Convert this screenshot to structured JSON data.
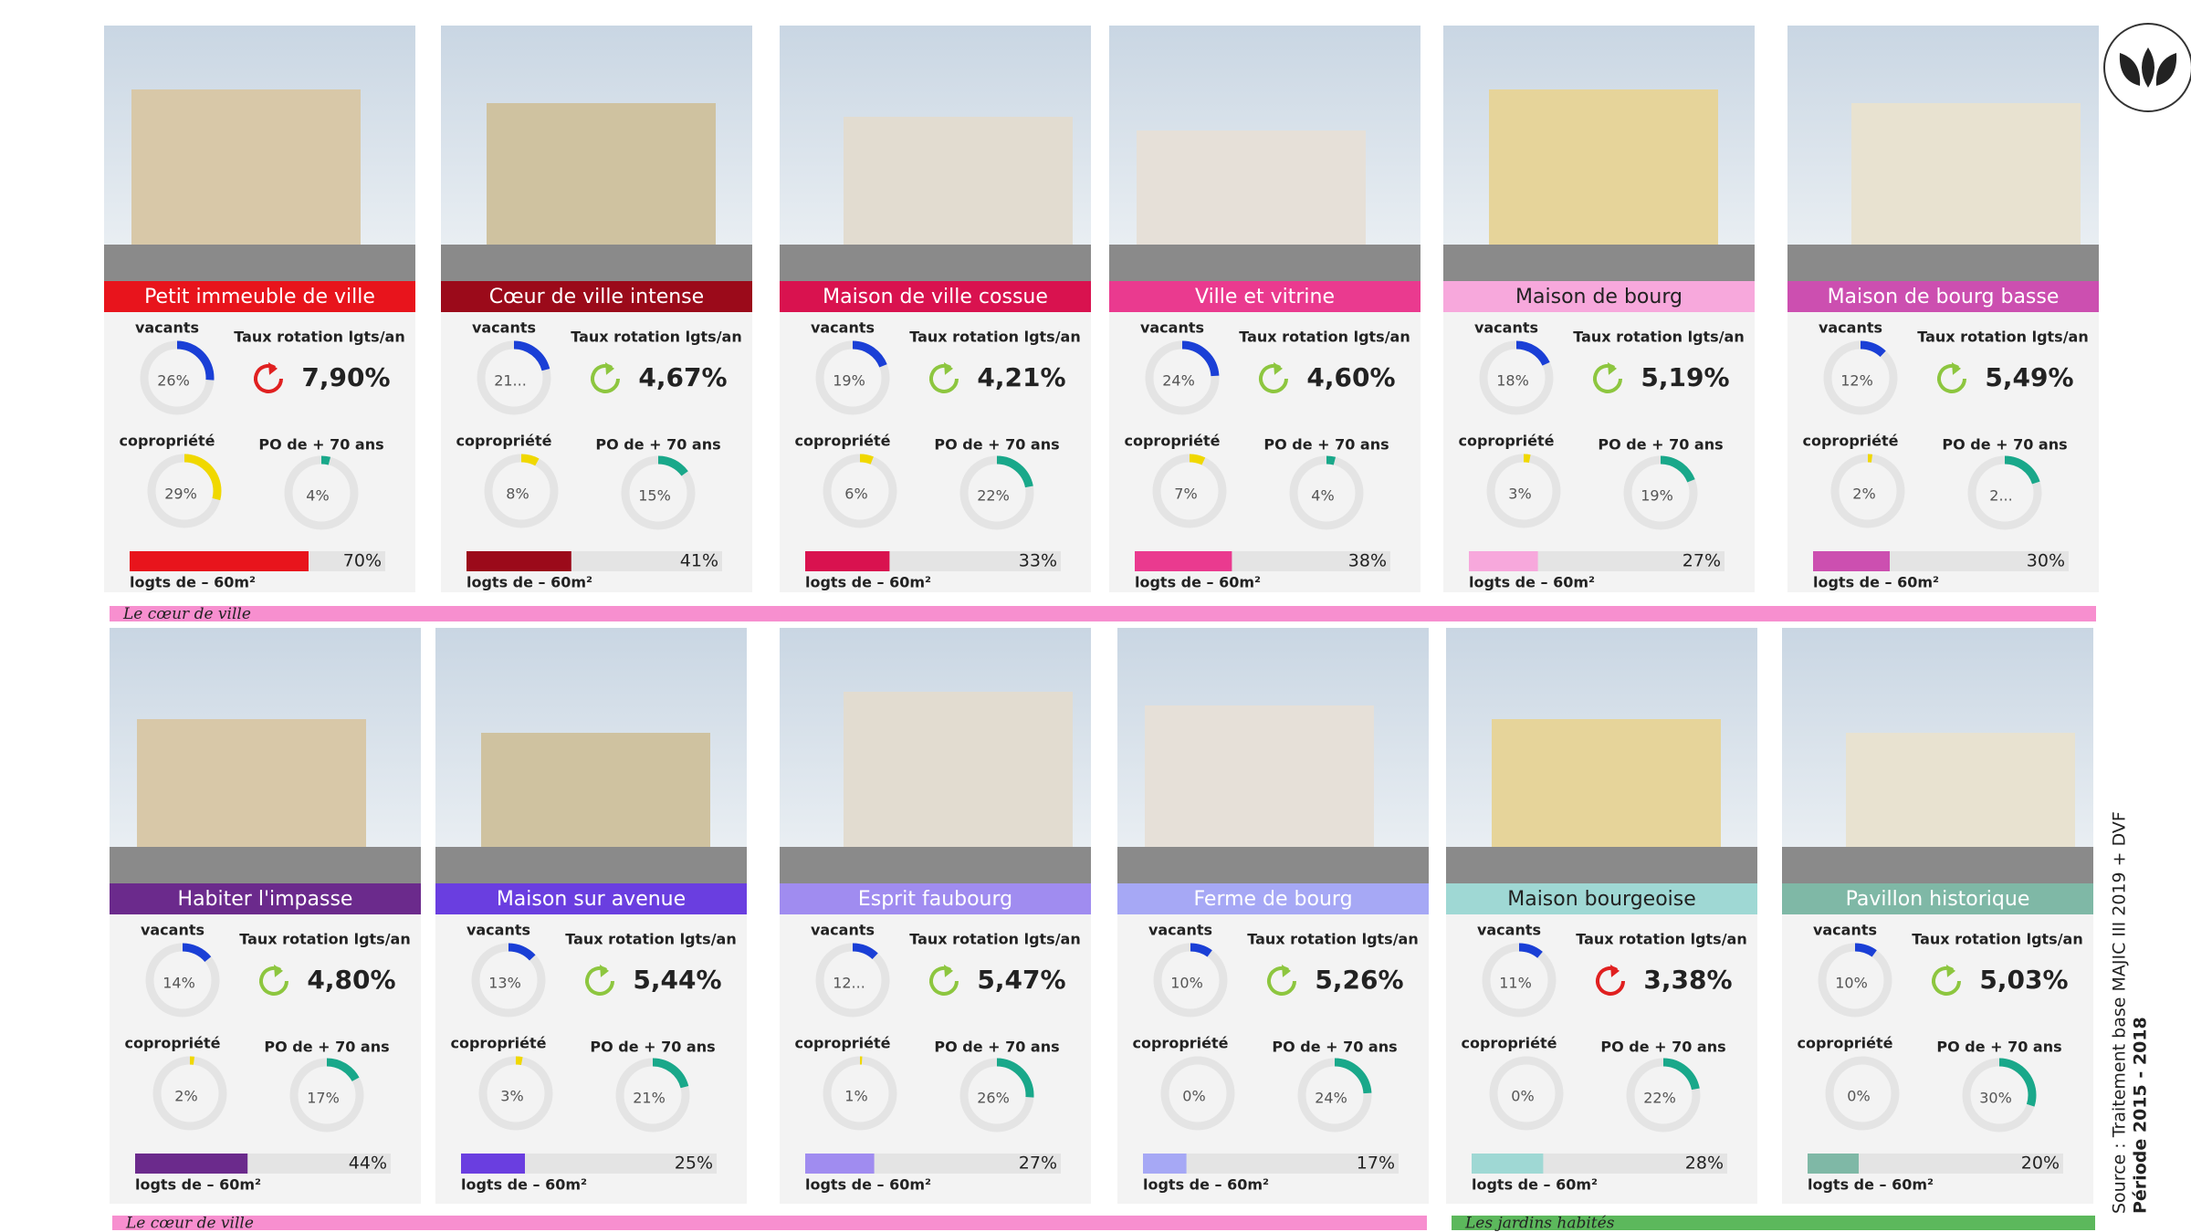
{
  "labels": {
    "vacants": "vacants",
    "rotation": "Taux rotation lgts/an",
    "copropriete": "copropriété",
    "po70": "PO de + 70 ans",
    "logts": "logts de – 60m²"
  },
  "cards": [
    {
      "title": "Petit immeuble de ville",
      "color": "#e8141c",
      "vacants": {
        "value": 26,
        "label": "26%"
      },
      "rotation": {
        "value": 7.9,
        "label": "7,90%"
      },
      "rotation_color": "#e02020",
      "copropriete": {
        "value": 29,
        "label": "29%"
      },
      "po70": {
        "value": 4,
        "label": "4%"
      },
      "logts": {
        "value": 70,
        "label": "70%"
      }
    },
    {
      "title": "Cœur de ville intense",
      "color": "#9b0a1a",
      "vacants": {
        "value": 21,
        "label": "21..."
      },
      "rotation": {
        "value": 4.67,
        "label": "4,67%"
      },
      "rotation_color": "#8dc63f",
      "copropriete": {
        "value": 8,
        "label": "8%"
      },
      "po70": {
        "value": 15,
        "label": "15%"
      },
      "logts": {
        "value": 41,
        "label": "41%"
      }
    },
    {
      "title": "Maison de ville cossue",
      "color": "#d9124f",
      "vacants": {
        "value": 19,
        "label": "19%"
      },
      "rotation": {
        "value": 4.21,
        "label": "4,21%"
      },
      "rotation_color": "#8dc63f",
      "copropriete": {
        "value": 6,
        "label": "6%"
      },
      "po70": {
        "value": 22,
        "label": "22%"
      },
      "logts": {
        "value": 33,
        "label": "33%"
      }
    },
    {
      "title": "Ville et vitrine",
      "color": "#ea3a8f",
      "vacants": {
        "value": 24,
        "label": "24%"
      },
      "rotation": {
        "value": 4.6,
        "label": "4,60%"
      },
      "rotation_color": "#8dc63f",
      "copropriete": {
        "value": 7,
        "label": "7%"
      },
      "po70": {
        "value": 4,
        "label": "4%"
      },
      "logts": {
        "value": 38,
        "label": "38%"
      }
    },
    {
      "title": "Maison de bourg",
      "color": "#f7a8dc",
      "vacants": {
        "value": 18,
        "label": "18%"
      },
      "rotation": {
        "value": 5.19,
        "label": "5,19%"
      },
      "rotation_color": "#8dc63f",
      "copropriete": {
        "value": 3,
        "label": "3%"
      },
      "po70": {
        "value": 19,
        "label": "19%"
      },
      "logts": {
        "value": 27,
        "label": "27%"
      }
    },
    {
      "title": "Maison de bourg basse",
      "color": "#cc4fb0",
      "vacants": {
        "value": 12,
        "label": "12%"
      },
      "rotation": {
        "value": 5.49,
        "label": "5,49%"
      },
      "rotation_color": "#8dc63f",
      "copropriete": {
        "value": 2,
        "label": "2%"
      },
      "po70": {
        "value": 20,
        "label": "2..."
      },
      "logts": {
        "value": 30,
        "label": "30%"
      }
    },
    {
      "title": "Habiter l'impasse",
      "color": "#6b2a8c",
      "vacants": {
        "value": 14,
        "label": "14%"
      },
      "rotation": {
        "value": 4.8,
        "label": "4,80%"
      },
      "rotation_color": "#8dc63f",
      "copropriete": {
        "value": 2,
        "label": "2%"
      },
      "po70": {
        "value": 17,
        "label": "17%"
      },
      "logts": {
        "value": 44,
        "label": "44%"
      }
    },
    {
      "title": "Maison sur avenue",
      "color": "#6a3ee0",
      "vacants": {
        "value": 13,
        "label": "13%"
      },
      "rotation": {
        "value": 5.44,
        "label": "5,44%"
      },
      "rotation_color": "#8dc63f",
      "copropriete": {
        "value": 3,
        "label": "3%"
      },
      "po70": {
        "value": 21,
        "label": "21%"
      },
      "logts": {
        "value": 25,
        "label": "25%"
      }
    },
    {
      "title": "Esprit faubourg",
      "color": "#a08cf0",
      "vacants": {
        "value": 12,
        "label": "12..."
      },
      "rotation": {
        "value": 5.47,
        "label": "5,47%"
      },
      "rotation_color": "#8dc63f",
      "copropriete": {
        "value": 1,
        "label": "1%"
      },
      "po70": {
        "value": 26,
        "label": "26%"
      },
      "logts": {
        "value": 27,
        "label": "27%"
      }
    },
    {
      "title": "Ferme de bourg",
      "color": "#a6a8f5",
      "vacants": {
        "value": 10,
        "label": "10%"
      },
      "rotation": {
        "value": 5.26,
        "label": "5,26%"
      },
      "rotation_color": "#8dc63f",
      "copropriete": {
        "value": 0,
        "label": "0%"
      },
      "po70": {
        "value": 24,
        "label": "24%"
      },
      "logts": {
        "value": 17,
        "label": "17%"
      }
    },
    {
      "title": "Maison bourgeoise",
      "color": "#9fd8d4",
      "vacants": {
        "value": 11,
        "label": "11%"
      },
      "rotation": {
        "value": 3.38,
        "label": "3,38%"
      },
      "rotation_color": "#e02020",
      "copropriete": {
        "value": 0,
        "label": "0%"
      },
      "po70": {
        "value": 22,
        "label": "22%"
      },
      "logts": {
        "value": 28,
        "label": "28%"
      }
    },
    {
      "title": "Pavillon historique",
      "color": "#7fb8a6",
      "vacants": {
        "value": 10,
        "label": "10%"
      },
      "rotation": {
        "value": 5.03,
        "label": "5,03%"
      },
      "rotation_color": "#8dc63f",
      "copropriete": {
        "value": 0,
        "label": "0%"
      },
      "po70": {
        "value": 30,
        "label": "30%"
      },
      "logts": {
        "value": 20,
        "label": "20%"
      }
    }
  ],
  "sections": [
    {
      "label": "Le cœur de ville",
      "color": "#f78fcf"
    },
    {
      "label": "Le cœur de ville",
      "color": "#f78fcf"
    },
    {
      "label": "Les jardins habités",
      "color": "#5cb85c"
    }
  ],
  "colors": {
    "vacants": "#1a3fd6",
    "copropriete": "#f0d800",
    "po70": "#19a88a"
  },
  "source": "Source : Traitement base MAJIC III 2019 + DVF",
  "period": "Période 2015 - 2018"
}
